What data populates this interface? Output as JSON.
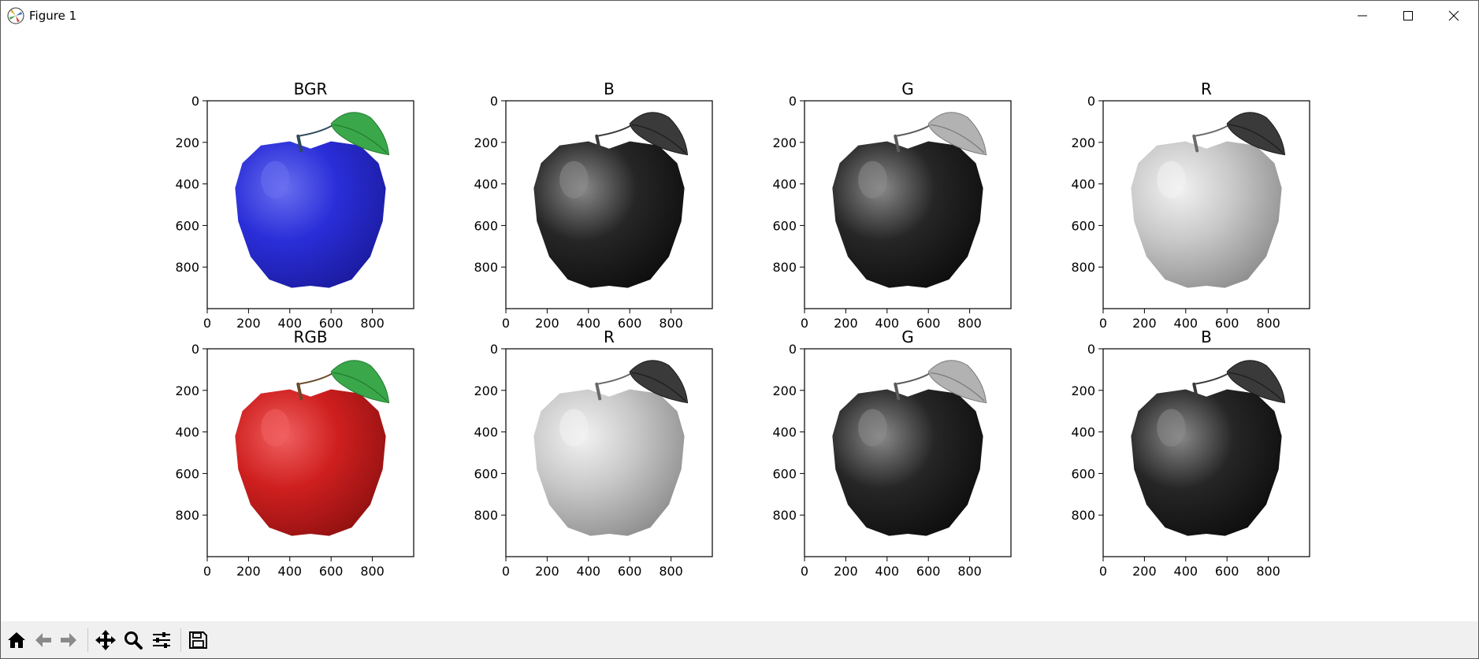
{
  "window": {
    "title": "Figure 1",
    "controls": [
      "minimize-icon",
      "maximize-icon",
      "close-icon"
    ]
  },
  "toolbar": {
    "buttons": [
      "home-icon",
      "back-arrow-icon",
      "forward-arrow-icon",
      "pan-icon",
      "zoom-icon",
      "configure-subplots-icon",
      "save-icon"
    ]
  },
  "chart_data": [
    {
      "type": "image",
      "title": "BGR",
      "colormap": "blue-apple-green-leaf",
      "xticks": [
        "0",
        "200",
        "400",
        "600",
        "800"
      ],
      "yticks": [
        "0",
        "200",
        "400",
        "600",
        "800"
      ],
      "xlim": [
        0,
        1000
      ],
      "ylim": [
        1000,
        0
      ]
    },
    {
      "type": "image",
      "title": "B",
      "colormap": "gray",
      "variant": "dark",
      "xticks": [
        "0",
        "200",
        "400",
        "600",
        "800"
      ],
      "yticks": [
        "0",
        "200",
        "400",
        "600",
        "800"
      ],
      "xlim": [
        0,
        1000
      ],
      "ylim": [
        1000,
        0
      ]
    },
    {
      "type": "image",
      "title": "G",
      "colormap": "gray",
      "variant": "dark",
      "leaf": "light",
      "xticks": [
        "0",
        "200",
        "400",
        "600",
        "800"
      ],
      "yticks": [
        "0",
        "200",
        "400",
        "600",
        "800"
      ],
      "xlim": [
        0,
        1000
      ],
      "ylim": [
        1000,
        0
      ]
    },
    {
      "type": "image",
      "title": "R",
      "colormap": "gray",
      "variant": "light",
      "xticks": [
        "0",
        "200",
        "400",
        "600",
        "800"
      ],
      "yticks": [
        "0",
        "200",
        "400",
        "600",
        "800"
      ],
      "xlim": [
        0,
        1000
      ],
      "ylim": [
        1000,
        0
      ]
    },
    {
      "type": "image",
      "title": "RGB",
      "colormap": "red-apple-green-leaf",
      "xticks": [
        "0",
        "200",
        "400",
        "600",
        "800"
      ],
      "yticks": [
        "0",
        "200",
        "400",
        "600",
        "800"
      ],
      "xlim": [
        0,
        1000
      ],
      "ylim": [
        1000,
        0
      ]
    },
    {
      "type": "image",
      "title": "R",
      "colormap": "gray",
      "variant": "light",
      "xticks": [
        "0",
        "200",
        "400",
        "600",
        "800"
      ],
      "yticks": [
        "0",
        "200",
        "400",
        "600",
        "800"
      ],
      "xlim": [
        0,
        1000
      ],
      "ylim": [
        1000,
        0
      ]
    },
    {
      "type": "image",
      "title": "G",
      "colormap": "gray",
      "variant": "dark",
      "leaf": "light",
      "xticks": [
        "0",
        "200",
        "400",
        "600",
        "800"
      ],
      "yticks": [
        "0",
        "200",
        "400",
        "600",
        "800"
      ],
      "xlim": [
        0,
        1000
      ],
      "ylim": [
        1000,
        0
      ]
    },
    {
      "type": "image",
      "title": "B",
      "colormap": "gray",
      "variant": "dark",
      "xticks": [
        "0",
        "200",
        "400",
        "600",
        "800"
      ],
      "yticks": [
        "0",
        "200",
        "400",
        "600",
        "800"
      ],
      "xlim": [
        0,
        1000
      ],
      "ylim": [
        1000,
        0
      ]
    }
  ],
  "palettes": {
    "blue-apple-green-leaf": {
      "body": "#2a2ed8",
      "bodyLight": "#6a6ff0",
      "bodyDark": "#1a1a9c",
      "leaf": "#3aa84a",
      "leafDark": "#237a31",
      "stem": "#2e4a5a"
    },
    "red-apple-green-leaf": {
      "body": "#cf1f1f",
      "bodyLight": "#f06060",
      "bodyDark": "#8e1010",
      "leaf": "#3aa84a",
      "leafDark": "#237a31",
      "stem": "#6b4a2a"
    },
    "dark": {
      "body": "#262626",
      "bodyLight": "#8a8a8a",
      "bodyDark": "#0c0c0c",
      "leaf": "#3a3a3a",
      "leafDark": "#1c1c1c",
      "stem": "#3a3a3a"
    },
    "dark-lightleaf": {
      "body": "#262626",
      "bodyLight": "#8a8a8a",
      "bodyDark": "#0c0c0c",
      "leaf": "#b2b2b2",
      "leafDark": "#7a7a7a",
      "stem": "#5a5a5a"
    },
    "light": {
      "body": "#c8c8c8",
      "bodyLight": "#f2f2f2",
      "bodyDark": "#8a8a8a",
      "leaf": "#3a3a3a",
      "leafDark": "#1c1c1c",
      "stem": "#6a6a6a"
    }
  }
}
